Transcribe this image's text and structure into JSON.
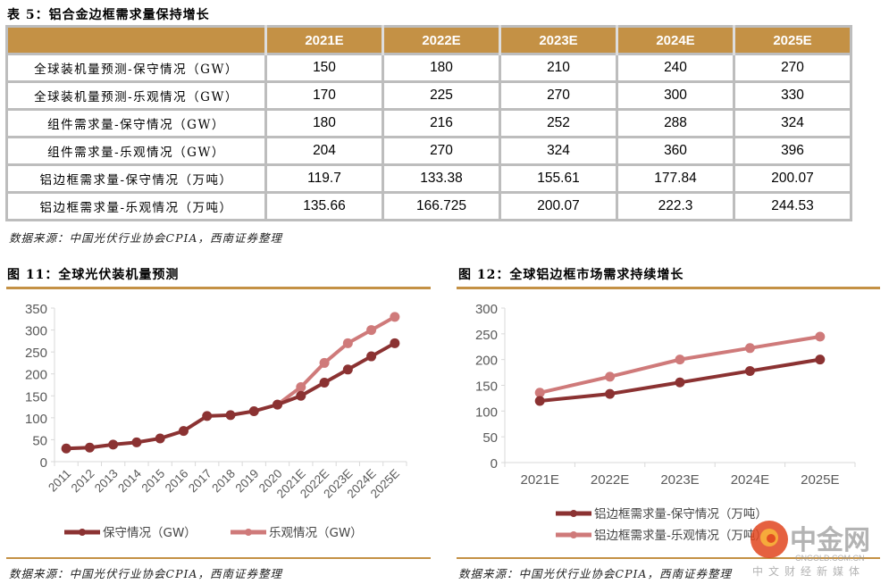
{
  "table": {
    "title": "表 5：铝合金边框需求量保持增长",
    "columns": [
      "",
      "2021E",
      "2022E",
      "2023E",
      "2024E",
      "2025E"
    ],
    "rows": [
      {
        "label": "全球装机量预测-保守情况（GW）",
        "values": [
          "150",
          "180",
          "210",
          "240",
          "270"
        ]
      },
      {
        "label": "全球装机量预测-乐观情况（GW）",
        "values": [
          "170",
          "225",
          "270",
          "300",
          "330"
        ]
      },
      {
        "label": "组件需求量-保守情况（GW）",
        "values": [
          "180",
          "216",
          "252",
          "288",
          "324"
        ]
      },
      {
        "label": "组件需求量-乐观情况（GW）",
        "values": [
          "204",
          "270",
          "324",
          "360",
          "396"
        ]
      },
      {
        "label": "铝边框需求量-保守情况（万吨）",
        "values": [
          "119.7",
          "133.38",
          "155.61",
          "177.84",
          "200.07"
        ]
      },
      {
        "label": "铝边框需求量-乐观情况（万吨）",
        "values": [
          "135.66",
          "166.725",
          "200.07",
          "222.3",
          "244.53"
        ]
      }
    ],
    "source": "数据来源：中国光伏行业协会CPIA，西南证券整理"
  },
  "colors": {
    "accent": "#c49145",
    "conservative": "#8b3232",
    "optimistic": "#cf7a7a",
    "axis": "#d9d9d9",
    "tick_text": "#595959"
  },
  "chart_data": [
    {
      "type": "line",
      "title": "图 11：全球光伏装机量预测",
      "categories": [
        "2011",
        "2012",
        "2013",
        "2014",
        "2015",
        "2016",
        "2017",
        "2018",
        "2019",
        "2020",
        "2021E",
        "2022E",
        "2023E",
        "2024E",
        "2025E"
      ],
      "series": [
        {
          "name": "保守情况（GW）",
          "values": [
            30,
            32,
            39,
            44,
            53,
            70,
            104,
            106,
            115,
            130,
            150,
            180,
            210,
            240,
            270
          ]
        },
        {
          "name": "乐观情况（GW）",
          "values": [
            null,
            null,
            null,
            null,
            null,
            null,
            null,
            null,
            null,
            130,
            170,
            225,
            270,
            300,
            330
          ]
        }
      ],
      "ylim": [
        0,
        350
      ],
      "yticks": [
        "0",
        "50",
        "100",
        "150",
        "200",
        "250",
        "300",
        "350"
      ],
      "xlabel": "",
      "ylabel": "",
      "legend": "bottom",
      "grid": false,
      "source": "数据来源：中国光伏行业协会CPIA，西南证券整理"
    },
    {
      "type": "line",
      "title": "图 12：全球铝边框市场需求持续增长",
      "categories": [
        "2021E",
        "2022E",
        "2023E",
        "2024E",
        "2025E"
      ],
      "series": [
        {
          "name": "铝边框需求量-保守情况（万吨）",
          "values": [
            119.7,
            133.38,
            155.61,
            177.84,
            200.07
          ]
        },
        {
          "name": "铝边框需求量-乐观情况（万吨）",
          "values": [
            135.66,
            166.725,
            200.07,
            222.3,
            244.53
          ]
        }
      ],
      "ylim": [
        0,
        300
      ],
      "yticks": [
        "0",
        "50",
        "100",
        "150",
        "200",
        "250",
        "300"
      ],
      "xlabel": "",
      "ylabel": "",
      "legend": "bottom",
      "grid": false,
      "source": "数据来源：中国光伏行业协会CPIA，西南证券整理"
    }
  ],
  "watermark": {
    "brand": "中金网",
    "domain": "CNGOLD.COM.CN",
    "tagline": "中文财经新媒体"
  }
}
